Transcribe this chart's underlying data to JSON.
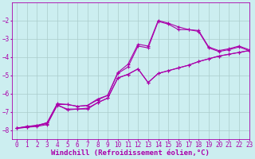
{
  "background_color": "#cceef0",
  "line_color": "#aa00aa",
  "marker": "+",
  "markersize": 3,
  "linewidth": 0.8,
  "xlim": [
    -0.5,
    23
  ],
  "ylim": [
    -8.5,
    -1.0
  ],
  "xlabel": "Windchill (Refroidissement éolien,°C)",
  "xlabel_fontsize": 6.5,
  "grid_color": "#aacccc",
  "yticks": [
    -8,
    -7,
    -6,
    -5,
    -4,
    -3,
    -2
  ],
  "xticks": [
    0,
    1,
    2,
    3,
    4,
    5,
    6,
    7,
    8,
    9,
    10,
    11,
    12,
    13,
    14,
    15,
    16,
    17,
    18,
    19,
    20,
    21,
    22,
    23
  ],
  "tick_fontsize": 5.5,
  "series": [
    {
      "x": [
        0,
        1,
        2,
        3,
        4,
        5,
        6,
        7,
        8,
        9,
        10,
        11,
        12,
        13,
        14,
        15,
        16,
        17,
        18,
        19,
        20,
        21,
        22,
        23
      ],
      "y": [
        -7.9,
        -7.85,
        -7.8,
        -7.7,
        -6.65,
        -6.85,
        -6.85,
        -6.8,
        -6.5,
        -6.25,
        -5.15,
        -4.95,
        -4.65,
        -5.4,
        -4.9,
        -4.75,
        -4.6,
        -4.45,
        -4.25,
        -4.1,
        -3.95,
        -3.85,
        -3.75,
        -3.65
      ]
    },
    {
      "x": [
        0,
        1,
        2,
        3,
        4,
        5,
        6,
        7,
        8,
        9,
        10,
        11,
        12,
        13,
        14,
        15,
        16,
        17,
        18,
        19,
        20,
        21,
        22,
        23
      ],
      "y": [
        -7.9,
        -7.85,
        -7.75,
        -7.65,
        -6.6,
        -6.9,
        -6.85,
        -6.85,
        -6.5,
        -6.25,
        -5.15,
        -4.95,
        -4.65,
        -5.4,
        -4.9,
        -4.75,
        -4.6,
        -4.45,
        -4.25,
        -4.1,
        -3.95,
        -3.85,
        -3.75,
        -3.65
      ]
    },
    {
      "x": [
        0,
        1,
        2,
        3,
        4,
        5,
        6,
        7,
        8,
        9,
        10,
        11,
        12,
        13,
        14,
        15,
        16,
        17,
        18,
        19,
        20,
        21,
        22,
        23
      ],
      "y": [
        -7.9,
        -7.8,
        -7.75,
        -7.6,
        -6.6,
        -6.6,
        -6.7,
        -6.65,
        -6.35,
        -6.1,
        -4.9,
        -4.55,
        -3.4,
        -3.5,
        -2.05,
        -2.2,
        -2.5,
        -2.5,
        -2.6,
        -3.5,
        -3.7,
        -3.6,
        -3.45,
        -3.65
      ]
    },
    {
      "x": [
        0,
        1,
        2,
        3,
        4,
        5,
        6,
        7,
        8,
        9,
        10,
        11,
        12,
        13,
        14,
        15,
        16,
        17,
        18,
        19,
        20,
        21,
        22,
        23
      ],
      "y": [
        -7.9,
        -7.8,
        -7.75,
        -7.6,
        -6.55,
        -6.6,
        -6.7,
        -6.65,
        -6.3,
        -6.1,
        -4.85,
        -4.4,
        -3.3,
        -3.4,
        -2.0,
        -2.15,
        -2.35,
        -2.5,
        -2.55,
        -3.45,
        -3.65,
        -3.55,
        -3.4,
        -3.6
      ]
    }
  ]
}
